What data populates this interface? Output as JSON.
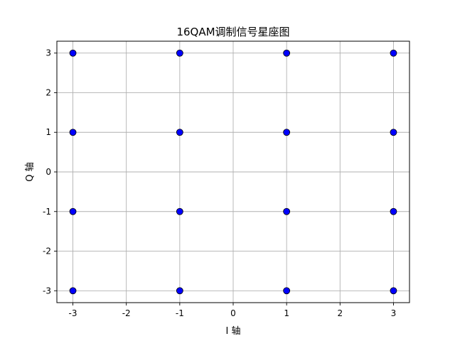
{
  "chart_data": {
    "type": "scatter",
    "title": "16QAM调制信号星座图",
    "xlabel": "I 轴",
    "ylabel": "Q 轴",
    "xlim": [
      -3.3,
      3.3
    ],
    "ylim": [
      -3.3,
      3.3
    ],
    "xticks": [
      -3,
      -2,
      -1,
      0,
      1,
      2,
      3
    ],
    "yticks": [
      -3,
      -2,
      -1,
      0,
      1,
      2,
      3
    ],
    "grid": true,
    "series": [
      {
        "color": "#0000ff",
        "edge_color": "#000000",
        "points": [
          {
            "x": -3,
            "y": 3
          },
          {
            "x": -1,
            "y": 3
          },
          {
            "x": 1,
            "y": 3
          },
          {
            "x": 3,
            "y": 3
          },
          {
            "x": -3,
            "y": 1
          },
          {
            "x": -1,
            "y": 1
          },
          {
            "x": 1,
            "y": 1
          },
          {
            "x": 3,
            "y": 1
          },
          {
            "x": -3,
            "y": -1
          },
          {
            "x": -1,
            "y": -1
          },
          {
            "x": 1,
            "y": -1
          },
          {
            "x": 3,
            "y": -1
          },
          {
            "x": -3,
            "y": -3
          },
          {
            "x": -1,
            "y": -3
          },
          {
            "x": 1,
            "y": -3
          },
          {
            "x": 3,
            "y": -3
          }
        ]
      }
    ]
  }
}
